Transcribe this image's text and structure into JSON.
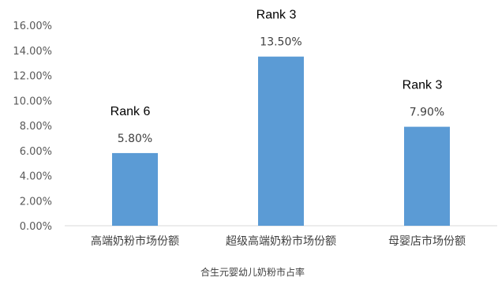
{
  "chart_data": {
    "type": "bar",
    "categories": [
      "高端奶粉市场份额",
      "超级高端奶粉市场份额",
      "母婴店市场份额"
    ],
    "values": [
      5.8,
      13.5,
      7.9
    ],
    "data_labels": [
      "5.80%",
      "13.50%",
      "7.90%"
    ],
    "annotations": [
      "Rank 6",
      "Rank 3",
      "Rank 3"
    ],
    "ylim": [
      0,
      16
    ],
    "yticks": [
      "0.00%",
      "2.00%",
      "4.00%",
      "6.00%",
      "8.00%",
      "10.00%",
      "12.00%",
      "14.00%",
      "16.00%"
    ],
    "xlabel": "合生元婴幼儿奶粉市占率",
    "ylabel": "",
    "grid": false,
    "bar_color": "#5B9BD5",
    "axis_color": "#D9D9D9"
  }
}
